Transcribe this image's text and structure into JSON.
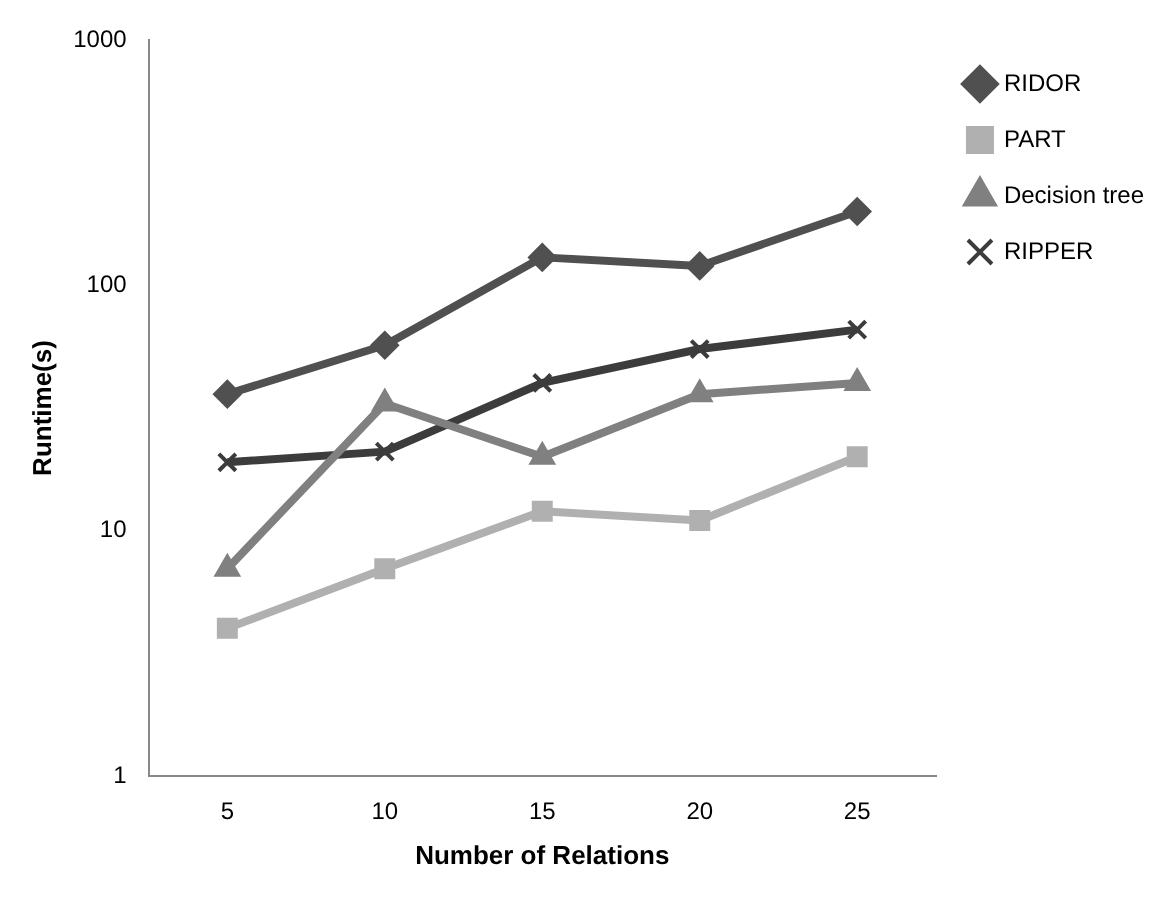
{
  "chart_data": {
    "type": "line",
    "xlabel": "Number of Relations",
    "ylabel": "Runtime(s)",
    "categories": [
      "5",
      "10",
      "15",
      "20",
      "25"
    ],
    "series": [
      {
        "name": "RIDOR",
        "color": "#505050",
        "marker": "diamond",
        "values": [
          36,
          57,
          130,
          120,
          200
        ]
      },
      {
        "name": "PART",
        "color": "#b0b0b0",
        "marker": "square",
        "values": [
          4,
          7,
          12,
          11,
          20
        ]
      },
      {
        "name": "Decision tree",
        "color": "#808080",
        "marker": "triangle",
        "values": [
          7,
          33,
          20,
          36,
          40
        ]
      },
      {
        "name": "RIPPER",
        "color": "#3c3c3c",
        "marker": "cross",
        "values": [
          19,
          21,
          40,
          55,
          66
        ]
      }
    ],
    "log": "y",
    "ylim": [
      1,
      1000
    ],
    "yticks": [
      1,
      10,
      100,
      1000
    ],
    "grid": false,
    "legend": "top right"
  }
}
